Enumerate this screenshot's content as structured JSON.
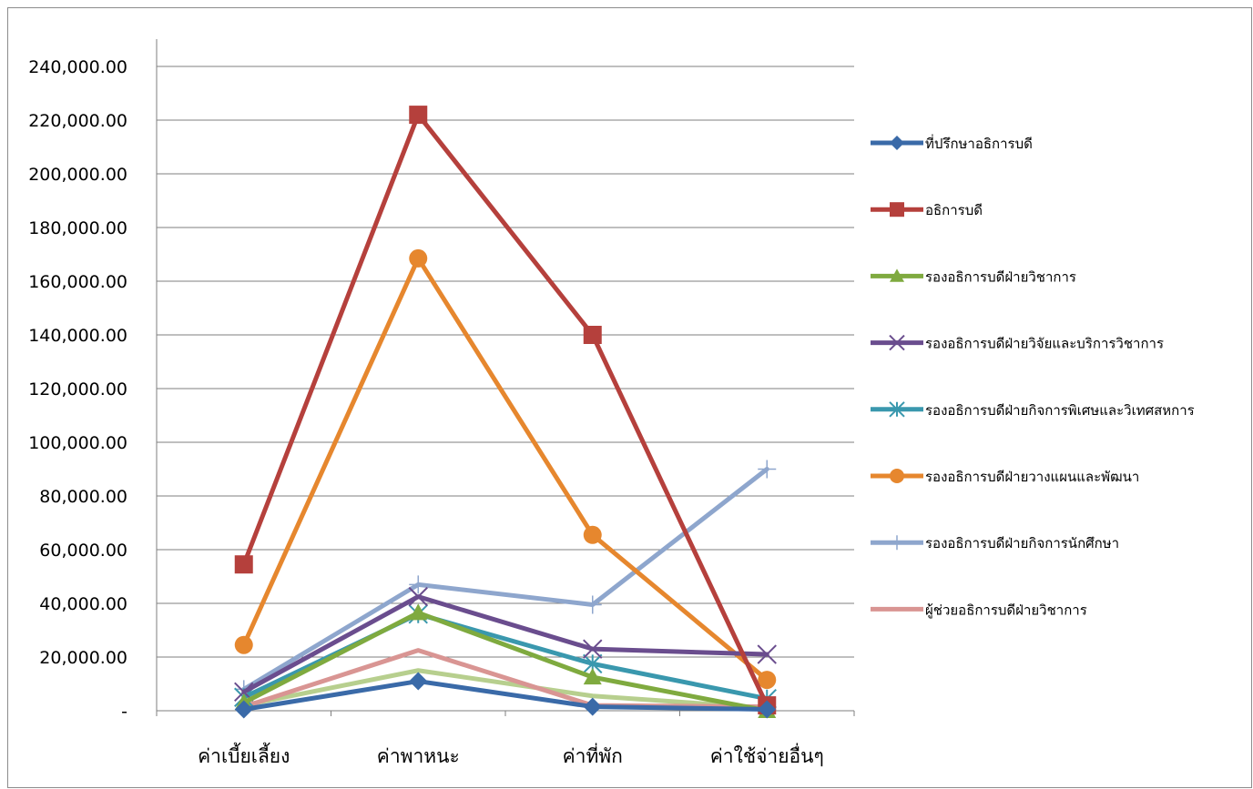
{
  "chart_data": {
    "type": "line",
    "categories": [
      "ค่าเบี้ยเลี้ยง",
      "ค่าพาหนะ",
      "ค่าที่พัก",
      "ค่าใช้จ่ายอื่นๆ"
    ],
    "ylim": [
      0,
      240000
    ],
    "yticks": [
      0,
      20000,
      40000,
      60000,
      80000,
      100000,
      120000,
      140000,
      160000,
      180000,
      200000,
      220000,
      240000
    ],
    "ytick_labels": [
      "-",
      "20,000.00",
      "40,000.00",
      "60,000.00",
      "80,000.00",
      "100,000.00",
      "120,000.00",
      "140,000.00",
      "160,000.00",
      "180,000.00",
      "200,000.00",
      "220,000.00",
      "240,000.00"
    ],
    "grid": "horizontal",
    "legend_position": "right",
    "series": [
      {
        "name": "ที่ปรึกษาอธิการบดี",
        "values": [
          500,
          11000,
          1500,
          500
        ],
        "color": "#3a6aa8",
        "marker": "diamond",
        "legend": true
      },
      {
        "name": "อธิการบดี",
        "values": [
          54500,
          222000,
          140000,
          2000
        ],
        "color": "#b5403c",
        "marker": "square",
        "legend": true
      },
      {
        "name": "รองอธิการบดีฝ่ายวิชาการ",
        "values": [
          3000,
          36500,
          12500,
          0
        ],
        "color": "#7faa3f",
        "marker": "triangle",
        "legend": true
      },
      {
        "name": "รองอธิการบดีฝ่ายวิจัยและบริการวิชาการ",
        "values": [
          7000,
          42500,
          23000,
          21000
        ],
        "color": "#6a4d8e",
        "marker": "x",
        "legend": true
      },
      {
        "name": "รองอธิการบดีฝ่ายกิจการพิเศษและวิเทศสหการ",
        "values": [
          5000,
          36000,
          17500,
          4500
        ],
        "color": "#3a98ae",
        "marker": "star",
        "legend": true
      },
      {
        "name": "รองอธิการบดีฝ่ายวางแผนและพัฒนา",
        "values": [
          24500,
          168500,
          65500,
          11500
        ],
        "color": "#e6872e",
        "marker": "circle",
        "legend": true
      },
      {
        "name": "รองอธิการบดีฝ่ายกิจการนักศึกษา",
        "values": [
          8000,
          47000,
          39500,
          90000
        ],
        "color": "#8ea6cd",
        "marker": "plus",
        "legend": true
      },
      {
        "name": "ผู้ช่วยอธิการบดีฝ่ายวิชาการ",
        "values": [
          1500,
          22500,
          2000,
          1500
        ],
        "color": "#d99593",
        "marker": "none",
        "legend": true
      },
      {
        "name": "",
        "values": [
          2000,
          15000,
          5500,
          1000
        ],
        "color": "#b7cf8e",
        "marker": "none",
        "legend": false
      }
    ]
  }
}
